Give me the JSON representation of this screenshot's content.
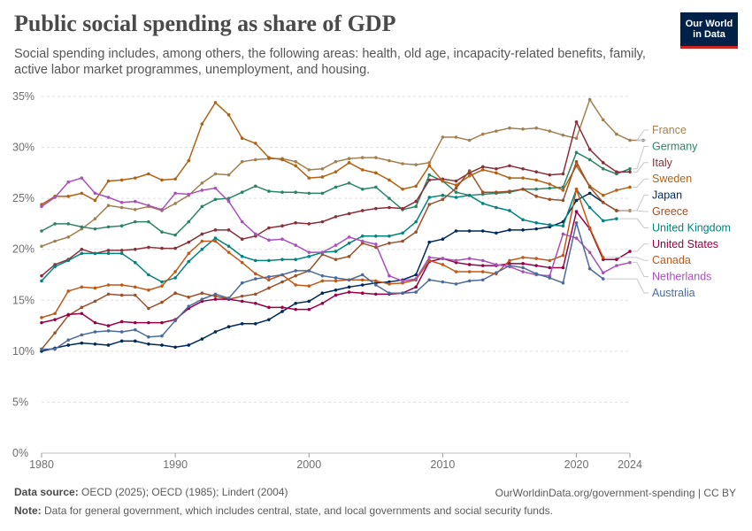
{
  "header": {
    "title": "Public social spending as share of GDP",
    "subtitle": "Social spending includes, among others, the following areas: health, old age, incapacity-related benefits, family, active labor market programmes, unemployment, and housing.",
    "logo_line1": "Our World",
    "logo_line2": "in Data"
  },
  "footer": {
    "source_label": "Data source:",
    "source_text": "OECD (2025); OECD (1985); Lindert (2004)",
    "url": "OurWorldinData.org/government-spending | CC BY",
    "note_label": "Note:",
    "note_text": "Data for general government, which includes central, state, and local governments and social security funds."
  },
  "chart_data": {
    "type": "line",
    "title": "Public social spending as share of GDP",
    "xlabel": "",
    "ylabel": "",
    "xlim": [
      1980,
      2024
    ],
    "ylim": [
      0,
      35
    ],
    "x_ticks": [
      1980,
      1990,
      2000,
      2010,
      2020,
      2024
    ],
    "y_ticks": [
      0,
      5,
      10,
      15,
      20,
      25,
      30,
      35
    ],
    "y_tick_labels": [
      "0%",
      "5%",
      "10%",
      "15%",
      "20%",
      "25%",
      "30%",
      "35%"
    ],
    "grid": "horizontal-dotted",
    "series": [
      {
        "name": "France",
        "color": "#a2814f",
        "start": 1980,
        "values": [
          20.3,
          20.8,
          21.2,
          22,
          23,
          24.3,
          24.1,
          23.9,
          24.2,
          23.8,
          24.5,
          25.3,
          26.5,
          27.4,
          27.3,
          28.6,
          28.8,
          28.9,
          28.9,
          28.6,
          27.8,
          27.9,
          28.6,
          28.9,
          29.0,
          29.0,
          28.7,
          28.4,
          28.3,
          28.5,
          31.0,
          31.0,
          30.7,
          31.3,
          31.6,
          31.9,
          31.8,
          31.9,
          31.6,
          31.2,
          30.9,
          34.7,
          32.7,
          31.3,
          30.7,
          30.7
        ]
      },
      {
        "name": "Germany",
        "color": "#2c8465",
        "start": 1980,
        "values": [
          21.8,
          22.5,
          22.5,
          22.2,
          22,
          22.2,
          22.3,
          22.7,
          22.7,
          21.7,
          21.4,
          22.7,
          24.2,
          24.9,
          25,
          25.6,
          26.2,
          25.7,
          25.6,
          25.6,
          25.5,
          25.5,
          26.1,
          26.5,
          25.9,
          26.1,
          25,
          23.9,
          24.2,
          27.3,
          26.7,
          25.6,
          25.3,
          25.4,
          25.5,
          25.6,
          25.9,
          25.9,
          26.0,
          26.1,
          29.5,
          28.8,
          27.9,
          27.4,
          27.9
        ]
      },
      {
        "name": "Italy",
        "color": "#883039",
        "start": 1980,
        "values": [
          17.4,
          18.5,
          19,
          20,
          19.6,
          19.9,
          19.9,
          20,
          20.2,
          20.1,
          20.1,
          20.7,
          21.5,
          21.9,
          21.9,
          21,
          21.3,
          22.1,
          22.3,
          22.6,
          22.5,
          22.7,
          23.2,
          23.5,
          23.8,
          24,
          24.1,
          24,
          24.7,
          26.8,
          26.9,
          26.7,
          27.5,
          28.1,
          27.9,
          28.2,
          27.9,
          27.6,
          27.3,
          27.4,
          32.5,
          29.8,
          28.5,
          27.6,
          27.6
        ]
      },
      {
        "name": "Sweden",
        "color": "#b16214",
        "start": 1980,
        "values": [
          24.4,
          25.2,
          25.2,
          25.5,
          24.8,
          26.7,
          26.8,
          27,
          27.4,
          26.8,
          26.9,
          28.7,
          32.3,
          34.4,
          33.2,
          30.9,
          30.4,
          29,
          28.8,
          28.2,
          27,
          27.1,
          27.6,
          28.5,
          27.8,
          27.5,
          26.8,
          25.9,
          26.2,
          28.2,
          26.7,
          26.3,
          27.2,
          27.8,
          27.5,
          27.0,
          27.0,
          26.8,
          26.4,
          25.8,
          28.2,
          26.2,
          25.3,
          25.8,
          26.1
        ]
      },
      {
        "name": "Japan",
        "color": "#00295b",
        "start": 1980,
        "values": [
          10,
          10.3,
          10.6,
          10.8,
          10.7,
          10.6,
          11,
          11,
          10.7,
          10.6,
          10.4,
          10.6,
          11.2,
          11.9,
          12.4,
          12.7,
          12.7,
          13.1,
          13.9,
          14.7,
          14.9,
          15.7,
          16.0,
          16.3,
          16.5,
          16.7,
          16.8,
          17.0,
          17.5,
          20.7,
          21.0,
          21.8,
          21.8,
          21.8,
          21.6,
          21.9,
          21.9,
          22.0,
          22.2,
          22.7,
          24.8,
          25.5,
          24.6,
          23.8
        ]
      },
      {
        "name": "Greece",
        "color": "#9a5129",
        "start": 1980,
        "values": [
          10.2,
          11.8,
          13.5,
          14.3,
          14.9,
          15.6,
          15.5,
          15.5,
          14.2,
          14.8,
          15.7,
          15.3,
          15.7,
          15.4,
          15.1,
          15.4,
          15.6,
          16.2,
          16.8,
          17.4,
          17.9,
          19.5,
          19.0,
          19.3,
          20.6,
          20.2,
          20.6,
          20.8,
          21.7,
          24.4,
          24.9,
          26.0,
          27.7,
          25.6,
          25.6,
          25.7,
          25.9,
          25.2,
          24.9,
          24.8,
          28.6,
          26.1,
          24.6,
          23.8,
          23.8
        ]
      },
      {
        "name": "United Kingdom",
        "color": "#00847e",
        "start": 1980,
        "values": [
          16.9,
          18.3,
          18.9,
          19.6,
          19.6,
          19.6,
          19.6,
          18.7,
          17.5,
          16.8,
          17.2,
          18.8,
          20,
          21.1,
          20.3,
          19.3,
          18.9,
          18.9,
          19,
          19,
          19.3,
          19.7,
          19.8,
          20.6,
          21.3,
          21.3,
          21.3,
          21.6,
          22.7,
          25.1,
          25.3,
          25.1,
          25.3,
          24.5,
          24.1,
          23.8,
          22.9,
          22.6,
          22.4,
          22.3,
          25.9,
          24.1,
          22.8,
          23.0
        ]
      },
      {
        "name": "United States",
        "color": "#970046",
        "start": 1980,
        "values": [
          12.8,
          13.1,
          13.6,
          13.7,
          12.8,
          12.5,
          12.9,
          12.8,
          12.8,
          12.8,
          13.1,
          14.2,
          14.9,
          15.1,
          15.1,
          14.9,
          14.7,
          14.3,
          14.3,
          14.1,
          14.1,
          14.7,
          15.5,
          15.8,
          15.7,
          15.6,
          15.6,
          15.7,
          16.3,
          18.8,
          19.1,
          18.7,
          18.5,
          18.4,
          18.4,
          18.6,
          18.6,
          18.4,
          18.2,
          18.2,
          23.7,
          22.0,
          19.0,
          19.0,
          19.8
        ]
      },
      {
        "name": "Canada",
        "color": "#c05917",
        "start": 1980,
        "values": [
          13.3,
          13.7,
          15.9,
          16.3,
          16.2,
          16.5,
          16.5,
          16.3,
          16,
          16.4,
          17.8,
          19.6,
          20.8,
          20.8,
          19.7,
          18.7,
          17.6,
          17,
          17.5,
          16.5,
          16.4,
          16.9,
          16.9,
          17.0,
          17.0,
          16.9,
          16.6,
          16.7,
          17.0,
          18.9,
          18.5,
          17.8,
          17.8,
          17.8,
          17.6,
          18.9,
          19.2,
          19.1,
          18.9,
          19.4,
          25.9,
          22.1,
          19.2
        ]
      },
      {
        "name": "Netherlands",
        "color": "#a652ba",
        "start": 1980,
        "values": [
          24.2,
          25.1,
          26.6,
          27,
          25.5,
          25.1,
          24.6,
          24.7,
          24.3,
          23.9,
          25.5,
          25.4,
          25.8,
          26,
          24.7,
          22.7,
          21.5,
          20.9,
          21,
          20.4,
          19.7,
          19.7,
          20.4,
          21.2,
          20.8,
          20.5,
          17.4,
          16.9,
          17.1,
          19.2,
          19.1,
          18.9,
          19.1,
          18.9,
          18.5,
          18.3,
          17.8,
          17.5,
          17.4,
          21.5,
          21.1,
          19.7,
          17.7,
          18.4,
          18.7
        ]
      },
      {
        "name": "Australia",
        "color": "#4c6a9c",
        "start": 1980,
        "values": [
          10.2,
          10.2,
          11.1,
          11.6,
          11.9,
          12,
          11.9,
          12.1,
          11.4,
          11.5,
          13,
          14.4,
          15.1,
          15.6,
          15.2,
          16.7,
          17.1,
          17.3,
          17.5,
          17.9,
          17.9,
          17.4,
          17.2,
          17.0,
          17.5,
          16.5,
          15.7,
          15.7,
          15.8,
          17.0,
          16.8,
          16.6,
          16.9,
          17.0,
          17.7,
          18.4,
          18.2,
          17.6,
          17.2,
          16.7,
          22.6,
          18.1,
          17.1
        ]
      }
    ]
  }
}
